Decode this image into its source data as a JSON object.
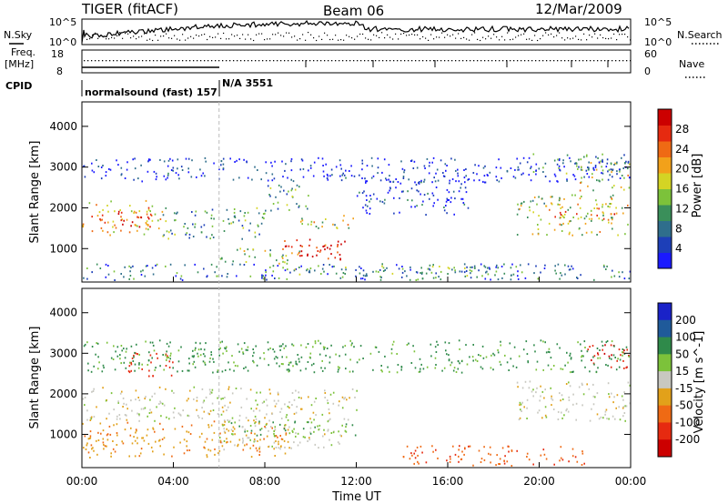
{
  "header": {
    "title": "TIGER (fitACF)",
    "beam": "Beam 06",
    "date": "12/Mar/2009"
  },
  "top_panels": {
    "nsky_label": "N.Sky",
    "nsky_ticks": [
      "10^5",
      "10^0"
    ],
    "nsearch_label": "N.Search",
    "nsearch_ticks": [
      "10^5",
      "10^0"
    ],
    "freq_label": "Freq.",
    "freq_unit": "[MHz]",
    "freq_ticks": [
      "18",
      "8"
    ],
    "nave_label": "Nave",
    "nave_ticks": [
      "60",
      "0"
    ],
    "cpid_label": "CPID",
    "cpid_entries": [
      {
        "text": "normalsound (fast) 157",
        "start_hour": 0
      },
      {
        "text": "N/A 3551",
        "start_hour": 6
      }
    ]
  },
  "chart_data": [
    {
      "type": "heatmap",
      "name": "Power",
      "xlabel": "Time UT",
      "ylabel": "Slant Range [km]",
      "xlim_hours": [
        0,
        24
      ],
      "x_ticks": [
        "00:00",
        "04:00",
        "08:00",
        "12:00",
        "16:00",
        "20:00",
        "00:00"
      ],
      "ylim_km": [
        180,
        4600
      ],
      "y_ticks": [
        1000,
        2000,
        3000,
        4000
      ],
      "colorbar": {
        "label": "Power [dB]",
        "ticks": [
          "4",
          "8",
          "12",
          "16",
          "20",
          "24",
          "28"
        ],
        "colors": [
          "#1a1aff",
          "#1d3fb8",
          "#2f6e8c",
          "#3a8f5a",
          "#7cc23a",
          "#d4d424",
          "#f2a11a",
          "#ef6a14",
          "#e62a10",
          "#cc0000"
        ]
      },
      "regions": [
        {
          "t": [
            0.0,
            3.5
          ],
          "r": [
            1300,
            2150
          ],
          "level": 0.62
        },
        {
          "t": [
            1.0,
            3.0
          ],
          "r": [
            1500,
            1900
          ],
          "level": 0.85
        },
        {
          "t": [
            3.5,
            8.0
          ],
          "r": [
            1200,
            2000
          ],
          "level": 0.35
        },
        {
          "t": [
            6.0,
            9.5
          ],
          "r": [
            600,
            1000
          ],
          "level": 0.45
        },
        {
          "t": [
            8.5,
            11.5
          ],
          "r": [
            700,
            1200
          ],
          "level": 0.82
        },
        {
          "t": [
            9.5,
            11.0
          ],
          "r": [
            800,
            1100
          ],
          "level": 1.0
        },
        {
          "t": [
            8.0,
            10.0
          ],
          "r": [
            1900,
            2600
          ],
          "level": 0.4
        },
        {
          "t": [
            9.5,
            12.0
          ],
          "r": [
            1400,
            1800
          ],
          "level": 0.5
        },
        {
          "t": [
            12.0,
            17.0
          ],
          "r": [
            1800,
            2700
          ],
          "level": 0.12
        },
        {
          "t": [
            19.0,
            24.0
          ],
          "r": [
            1300,
            2300
          ],
          "level": 0.5
        },
        {
          "t": [
            20.5,
            23.5
          ],
          "r": [
            1700,
            2100
          ],
          "level": 0.72
        },
        {
          "t": [
            21.5,
            24.0
          ],
          "r": [
            2400,
            3100
          ],
          "level": 0.55
        },
        {
          "t": [
            19.5,
            24.0
          ],
          "r": [
            2800,
            3300
          ],
          "level": 0.3
        },
        {
          "t": [
            0.0,
            24.0
          ],
          "r": [
            200,
            600
          ],
          "level": 0.25
        },
        {
          "t": [
            9.0,
            18.0
          ],
          "r": [
            250,
            550
          ],
          "level": 0.35
        },
        {
          "t": [
            0.0,
            24.0
          ],
          "r": [
            2600,
            3200
          ],
          "level": 0.08
        }
      ]
    },
    {
      "type": "heatmap",
      "name": "Velocity",
      "xlabel": "Time UT",
      "ylabel": "Slant Range [km]",
      "xlim_hours": [
        0,
        24
      ],
      "x_ticks": [
        "00:00",
        "04:00",
        "08:00",
        "12:00",
        "16:00",
        "20:00",
        "00:00"
      ],
      "ylim_km": [
        180,
        4600
      ],
      "y_ticks": [
        1000,
        2000,
        3000,
        4000
      ],
      "colorbar": {
        "label": "Velocity [m s^-1]",
        "ticks": [
          "200",
          "100",
          "50",
          "15",
          "-15",
          "-50",
          "-100",
          "-200"
        ],
        "colors": [
          "#1a22c8",
          "#1f5a9a",
          "#2f8a4a",
          "#7cc23a",
          "#c8c8c0",
          "#e2a11a",
          "#ef6a14",
          "#e62a10",
          "#cc0000"
        ]
      },
      "regions": [
        {
          "t": [
            0.0,
            8.0
          ],
          "r": [
            1300,
            2150
          ],
          "vel": 0
        },
        {
          "t": [
            8.0,
            12.0
          ],
          "r": [
            1300,
            2100
          ],
          "vel": 0
        },
        {
          "t": [
            6.0,
            11.5
          ],
          "r": [
            600,
            1200
          ],
          "vel": 0
        },
        {
          "t": [
            19.0,
            24.0
          ],
          "r": [
            1300,
            2300
          ],
          "vel": 0
        },
        {
          "t": [
            22.0,
            24.0
          ],
          "r": [
            2600,
            3200
          ],
          "vel": -200
        },
        {
          "t": [
            0.0,
            9.0
          ],
          "r": [
            400,
            1300
          ],
          "vel": -40
        },
        {
          "t": [
            14.0,
            22.0
          ],
          "r": [
            200,
            700
          ],
          "vel": -90
        },
        {
          "t": [
            6.0,
            12.0
          ],
          "r": [
            900,
            1300
          ],
          "vel": 40
        },
        {
          "t": [
            2.0,
            4.0
          ],
          "r": [
            2400,
            3000
          ],
          "vel": -150
        },
        {
          "t": [
            0.0,
            24.0
          ],
          "r": [
            2500,
            3300
          ],
          "vel": 60
        }
      ]
    }
  ]
}
